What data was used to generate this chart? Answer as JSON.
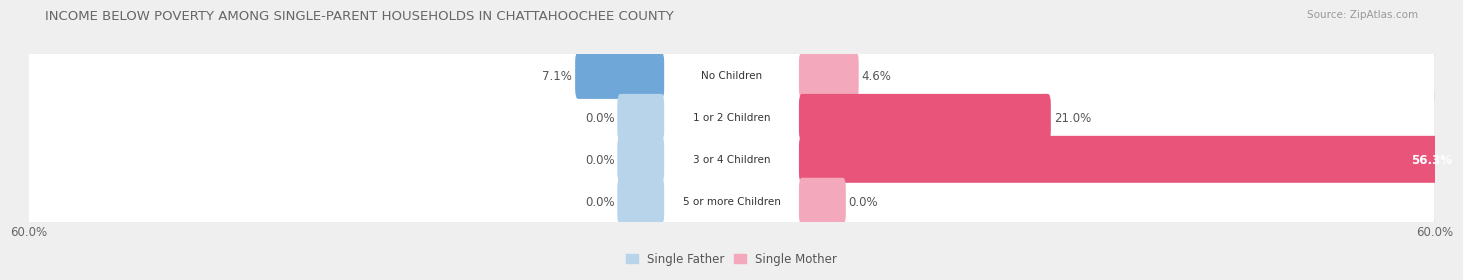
{
  "title": "INCOME BELOW POVERTY AMONG SINGLE-PARENT HOUSEHOLDS IN CHATTAHOOCHEE COUNTY",
  "source": "Source: ZipAtlas.com",
  "categories": [
    "No Children",
    "1 or 2 Children",
    "3 or 4 Children",
    "5 or more Children"
  ],
  "single_father": [
    7.1,
    0.0,
    0.0,
    0.0
  ],
  "single_mother": [
    4.6,
    21.0,
    56.3,
    0.0
  ],
  "father_color_dark": "#6fa8d8",
  "father_color_light": "#b8d4eb",
  "mother_color_dark": "#e8547a",
  "mother_color_light": "#f4a8bc",
  "xlim": 60.0,
  "bg_color": "#efefef",
  "row_bg_color": "#ffffff",
  "row_shadow_color": "#d8d8d8",
  "title_fontsize": 9.5,
  "source_fontsize": 7.5,
  "label_fontsize": 8.5,
  "category_fontsize": 7.5,
  "tick_fontsize": 8.5,
  "legend_fontsize": 8.5,
  "stub_size": 3.5
}
